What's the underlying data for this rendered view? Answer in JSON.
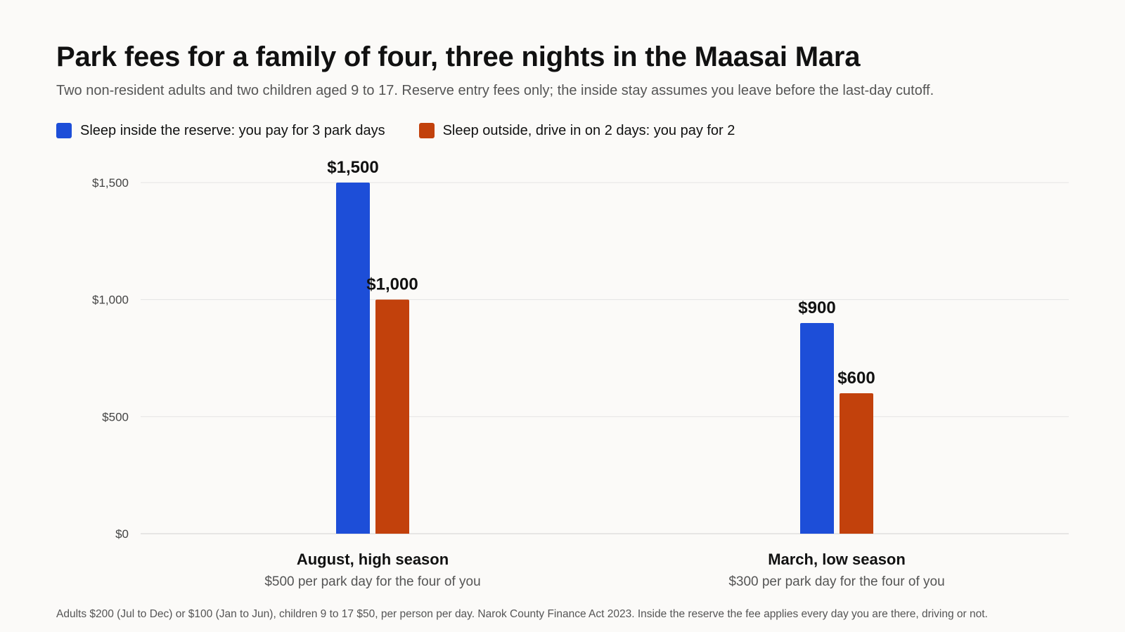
{
  "title": "Park fees for a family of four, three nights in the Maasai Mara",
  "subtitle": "Two non-resident adults and two children aged 9 to 17. Reserve entry fees only; the inside stay assumes you leave before the last-day cutoff.",
  "footnote": "Adults $200 (Jul to Dec) or $100 (Jan to Jun), children 9 to 17 $50, per person per day. Narok County Finance Act 2023. Inside the reserve the fee applies every day you are there, driving or not.",
  "colors": {
    "inside": "#1d4ed8",
    "outside": "#c2410c",
    "grid": "#e4e4e4",
    "axis_text": "#444444",
    "text": "#111111",
    "muted": "#555555"
  },
  "chart_data": {
    "type": "bar",
    "title": "Park fees for a family of four, three nights in the Maasai Mara",
    "subtitle": "Two non-resident adults and two children aged 9 to 17. Reserve entry fees only; the inside stay assumes you leave before the last-day cutoff.",
    "categories": [
      "August, high season",
      "March, low season"
    ],
    "category_sublabels": [
      "$500 per park day for the four of you",
      "$300 per park day for the four of you"
    ],
    "series": [
      {
        "name": "Sleep inside the reserve: you pay for 3 park days",
        "color": "#1d4ed8",
        "values": [
          1500,
          900
        ],
        "labels": [
          "$1,500",
          "$900"
        ]
      },
      {
        "name": "Sleep outside, drive in on 2 days: you pay for 2",
        "color": "#c2410c",
        "values": [
          1000,
          600
        ],
        "labels": [
          "$1,000",
          "$600"
        ]
      }
    ],
    "ylim": [
      0,
      1500
    ],
    "yticks": [
      0,
      500,
      1000,
      1500
    ],
    "ytick_labels": [
      "$0",
      "$500",
      "$1,000",
      "$1,500"
    ],
    "xlabel": "",
    "ylabel": "",
    "grid": true,
    "legend_position": "top-left"
  }
}
